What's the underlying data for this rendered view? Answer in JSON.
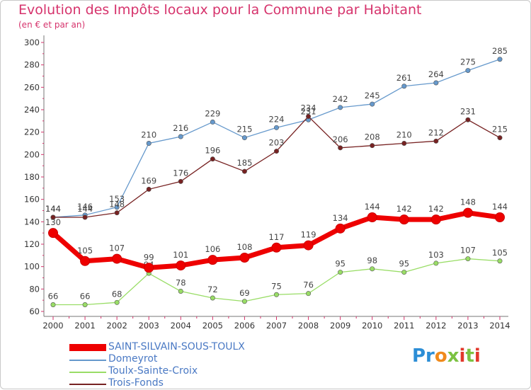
{
  "header": {
    "title": "Evolution des Impôts locaux pour la Commune par Habitant",
    "subtitle": "(en € et par an)"
  },
  "logo": {
    "text": "Proxiti",
    "colors": [
      "#2c8ed6",
      "#f08a1c",
      "#7cc242",
      "#e2382c"
    ]
  },
  "chart_data": {
    "type": "line",
    "x": [
      "2000",
      "2001",
      "2002",
      "2003",
      "2004",
      "2005",
      "2006",
      "2007",
      "2008",
      "2009",
      "2010",
      "2011",
      "2012",
      "2013",
      "2014"
    ],
    "ylim": [
      60,
      300
    ],
    "yticks": [
      60,
      80,
      100,
      120,
      140,
      160,
      180,
      200,
      220,
      240,
      260,
      280,
      300
    ],
    "grid": false,
    "legend_position": "bottom-left",
    "series": [
      {
        "name": "SAINT-SILVAIN-SOUS-TOULX",
        "color": "#ee0000",
        "emphasis": true,
        "values": [
          130,
          105,
          107,
          99,
          101,
          106,
          108,
          117,
          119,
          134,
          144,
          142,
          142,
          148,
          144
        ]
      },
      {
        "name": "Domeyrot",
        "color": "#6699cc",
        "emphasis": false,
        "values": [
          144,
          146,
          153,
          210,
          216,
          229,
          215,
          224,
          231,
          242,
          245,
          261,
          264,
          275,
          285
        ]
      },
      {
        "name": "Toulx-Sainte-Croix",
        "color": "#99dd66",
        "emphasis": false,
        "values": [
          66,
          66,
          68,
          94,
          78,
          72,
          69,
          75,
          76,
          95,
          98,
          95,
          103,
          107,
          105
        ]
      },
      {
        "name": "Trois-Fonds",
        "color": "#772222",
        "emphasis": false,
        "values": [
          144,
          144,
          148,
          169,
          176,
          196,
          185,
          203,
          234,
          206,
          208,
          210,
          212,
          231,
          215
        ]
      }
    ]
  }
}
